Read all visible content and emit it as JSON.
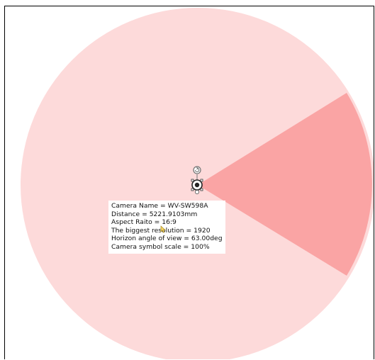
{
  "camera_info": {
    "lines": [
      "Camera Name = WV-SW598A",
      "Distance = 5221.9103mm",
      "Aspect Raito = 16:9",
      "The biggest resolution = 1920",
      "Horizon angle of view = 63.00deg",
      "Camera symbol scale = 100%"
    ]
  },
  "coverage": {
    "circle_color": "#fddada",
    "view_cone_color": "#faa4a4",
    "horizon_angle_deg": 63.0
  },
  "icons": {
    "rotate_handle": "rotate-handle-icon",
    "camera_symbol": "camera-symbol-icon",
    "cursor": "mouse-cursor-icon"
  }
}
